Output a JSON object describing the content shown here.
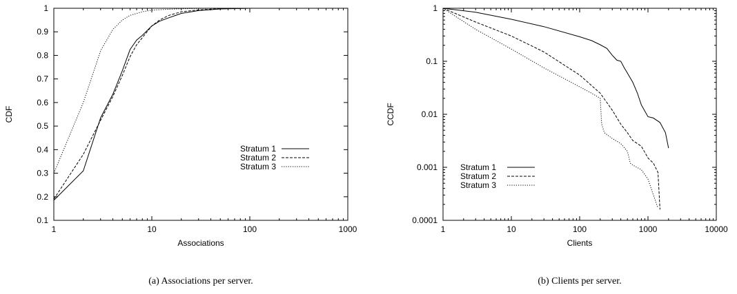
{
  "chart_data": [
    {
      "type": "line",
      "caption": "(a) Associations per server.",
      "xlabel": "Associations",
      "ylabel": "CDF",
      "xscale": "log",
      "yscale": "linear",
      "xlim": [
        1,
        1000
      ],
      "ylim": [
        0.1,
        1
      ],
      "xticks": [
        "1",
        "10",
        "100",
        "1000"
      ],
      "yticks": [
        "0.1",
        "0.2",
        "0.3",
        "0.4",
        "0.5",
        "0.6",
        "0.7",
        "0.8",
        "0.9",
        "1"
      ],
      "legend_position": "center-right",
      "series": [
        {
          "name": "Stratum 1",
          "dash": "solid",
          "x": [
            1,
            2,
            3,
            4,
            5,
            6,
            7,
            8,
            10,
            12,
            15,
            20,
            30,
            50,
            100,
            200
          ],
          "y": [
            0.185,
            0.31,
            0.535,
            0.635,
            0.735,
            0.825,
            0.865,
            0.885,
            0.925,
            0.945,
            0.96,
            0.978,
            0.99,
            0.997,
            1.0,
            1.0
          ]
        },
        {
          "name": "Stratum 2",
          "dash": "dashed",
          "x": [
            1,
            2,
            3,
            4,
            5,
            6,
            7,
            8,
            10,
            12,
            15,
            20,
            30,
            50,
            100,
            200
          ],
          "y": [
            0.19,
            0.38,
            0.525,
            0.625,
            0.715,
            0.795,
            0.845,
            0.875,
            0.925,
            0.95,
            0.97,
            0.985,
            0.993,
            0.998,
            1.0,
            1.0
          ]
        },
        {
          "name": "Stratum 3",
          "dash": "dotted",
          "x": [
            1,
            2,
            3,
            4,
            5,
            6,
            8,
            10,
            15,
            20,
            30,
            50,
            100,
            200
          ],
          "y": [
            0.3,
            0.6,
            0.82,
            0.91,
            0.95,
            0.97,
            0.985,
            0.992,
            0.996,
            0.998,
            0.999,
            1.0,
            1.0,
            1.0
          ]
        }
      ]
    },
    {
      "type": "line",
      "caption": "(b) Clients per server.",
      "xlabel": "Clients",
      "ylabel": "CCDF",
      "xscale": "log",
      "yscale": "log",
      "xlim": [
        1,
        10000
      ],
      "ylim": [
        0.0001,
        1
      ],
      "xticks": [
        "1",
        "10",
        "100",
        "1000",
        "10000"
      ],
      "yticks": [
        "0.0001",
        "0.001",
        "0.01",
        "0.1",
        "1"
      ],
      "legend_position": "bottom-left",
      "series": [
        {
          "name": "Stratum 1",
          "dash": "solid",
          "x": [
            1,
            3,
            10,
            30,
            100,
            150,
            200,
            250,
            300,
            350,
            400,
            450,
            500,
            600,
            700,
            800,
            1000,
            1200,
            1500,
            1800,
            2000
          ],
          "y": [
            1.0,
            0.84,
            0.62,
            0.45,
            0.29,
            0.245,
            0.205,
            0.175,
            0.13,
            0.105,
            0.1,
            0.075,
            0.06,
            0.04,
            0.025,
            0.015,
            0.009,
            0.0085,
            0.007,
            0.0045,
            0.0023
          ]
        },
        {
          "name": "Stratum 2",
          "dash": "dashed",
          "x": [
            1,
            3,
            10,
            30,
            100,
            200,
            300,
            400,
            500,
            600,
            800,
            1000,
            1200,
            1400,
            1500
          ],
          "y": [
            1.0,
            0.55,
            0.3,
            0.15,
            0.055,
            0.025,
            0.012,
            0.0065,
            0.0045,
            0.0032,
            0.0025,
            0.0015,
            0.0012,
            0.0008,
            0.00016
          ]
        },
        {
          "name": "Stratum 3",
          "dash": "dotted",
          "x": [
            1,
            3,
            10,
            30,
            100,
            150,
            200,
            210,
            230,
            300,
            400,
            500,
            550,
            600,
            800,
            1000,
            1200,
            1400
          ],
          "y": [
            1.0,
            0.4,
            0.17,
            0.075,
            0.033,
            0.025,
            0.02,
            0.0065,
            0.0045,
            0.0035,
            0.0028,
            0.002,
            0.0012,
            0.0011,
            0.0009,
            0.0006,
            0.0003,
            0.00017
          ]
        }
      ]
    }
  ]
}
